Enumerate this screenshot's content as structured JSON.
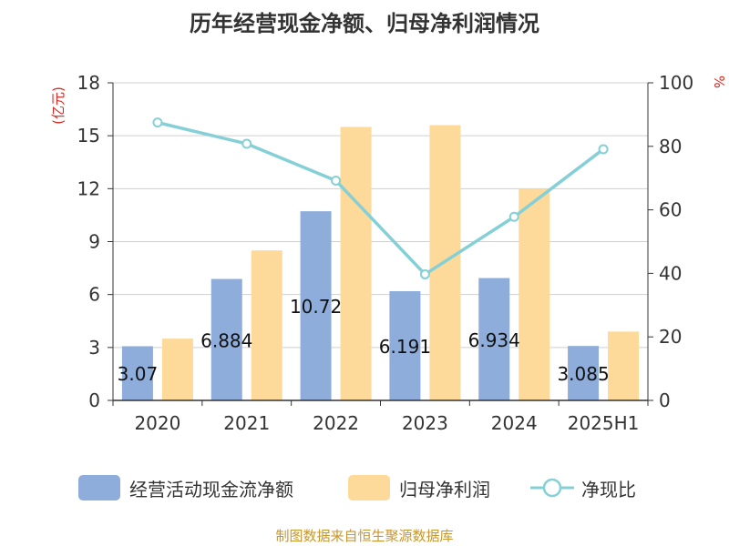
{
  "title": "历年经营现金净额、归母净利润情况",
  "source": "制图数据来自恒生聚源数据库",
  "colors": {
    "cashflow": "#8eadda",
    "profit": "#fdd99a",
    "ratio": "#85d0d6",
    "unit": "#e0271f"
  },
  "chart_data": {
    "type": "bar",
    "categories": [
      "2020",
      "2021",
      "2022",
      "2023",
      "2024",
      "2025H1"
    ],
    "y_left": {
      "unit_label": "(亿元)",
      "ylim": [
        0,
        18
      ],
      "ticks": [
        "0",
        "3",
        "6",
        "9",
        "12",
        "15",
        "18"
      ]
    },
    "y_right": {
      "unit_label": "%",
      "ylim": [
        0,
        100
      ],
      "ticks": [
        "0",
        "20",
        "40",
        "60",
        "80",
        "100"
      ]
    },
    "grid": true,
    "legend_position": "bottom",
    "series": [
      {
        "name": "经营活动现金流净额",
        "type": "bar",
        "axis": "left",
        "values": [
          3.07,
          6.884,
          10.72,
          6.191,
          6.934,
          3.085
        ],
        "labels": [
          "3.07",
          "6.884",
          "10.72",
          "6.191",
          "6.934",
          "3.085"
        ]
      },
      {
        "name": "归母净利润",
        "type": "bar",
        "axis": "left",
        "values": [
          3.5,
          8.5,
          15.5,
          15.6,
          12.0,
          3.9
        ]
      },
      {
        "name": "净现比",
        "type": "line",
        "axis": "right",
        "values": [
          87.5,
          80.8,
          69.2,
          39.7,
          57.8,
          79.1
        ]
      }
    ]
  }
}
